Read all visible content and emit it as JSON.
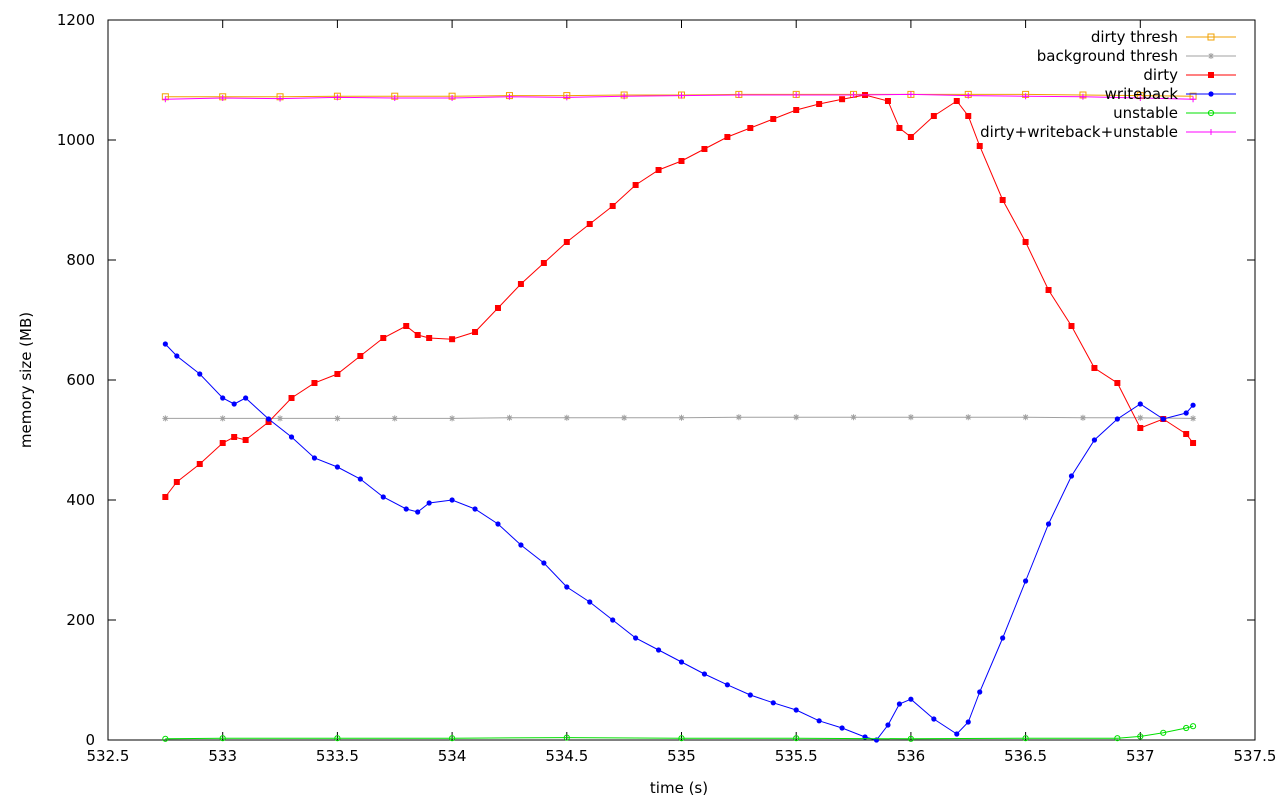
{
  "chart_data": {
    "type": "line",
    "title": "",
    "xlabel": "time (s)",
    "ylabel": "memory size (MB)",
    "xlim": [
      532.5,
      537.5
    ],
    "ylim": [
      0,
      1200
    ],
    "x_ticks": [
      532.5,
      533,
      533.5,
      534,
      534.5,
      535,
      535.5,
      536,
      536.5,
      537,
      537.5
    ],
    "x_tick_labels": [
      "532.5",
      "533",
      "533.5",
      "534",
      "534.5",
      "535",
      "535.5",
      "536",
      "536.5",
      "537",
      "537.5"
    ],
    "y_ticks": [
      0,
      200,
      400,
      600,
      800,
      1000,
      1200
    ],
    "y_tick_labels": [
      "0",
      "200",
      "400",
      "600",
      "800",
      "1000",
      "1200"
    ],
    "grid": false,
    "legend_position": "top-right",
    "series": [
      {
        "name": "dirty thresh",
        "color": "#f0a000",
        "marker": "square-open",
        "x": [
          532.75,
          533.0,
          533.25,
          533.5,
          533.75,
          534.0,
          534.25,
          534.5,
          534.75,
          535.0,
          535.25,
          535.5,
          535.75,
          536.0,
          536.25,
          536.5,
          536.75,
          537.0,
          537.23
        ],
        "y": [
          1072,
          1072,
          1072,
          1073,
          1073,
          1073,
          1074,
          1074,
          1075,
          1075,
          1076,
          1076,
          1076,
          1076,
          1076,
          1076,
          1075,
          1074,
          1073
        ]
      },
      {
        "name": "background thresh",
        "color": "#a0a0a0",
        "marker": "star",
        "x": [
          532.75,
          533.0,
          533.25,
          533.5,
          533.75,
          534.0,
          534.25,
          534.5,
          534.75,
          535.0,
          535.25,
          535.5,
          535.75,
          536.0,
          536.25,
          536.5,
          536.75,
          537.0,
          537.23
        ],
        "y": [
          536,
          536,
          536,
          536,
          536,
          536,
          537,
          537,
          537,
          537,
          538,
          538,
          538,
          538,
          538,
          538,
          537,
          537,
          536
        ]
      },
      {
        "name": "dirty",
        "color": "#ff0000",
        "marker": "square",
        "x": [
          532.75,
          532.8,
          532.9,
          533.0,
          533.05,
          533.1,
          533.2,
          533.3,
          533.4,
          533.5,
          533.6,
          533.7,
          533.8,
          533.85,
          533.9,
          534.0,
          534.1,
          534.2,
          534.3,
          534.4,
          534.5,
          534.6,
          534.7,
          534.8,
          534.9,
          535.0,
          535.1,
          535.2,
          535.3,
          535.4,
          535.5,
          535.6,
          535.7,
          535.8,
          535.9,
          535.95,
          536.0,
          536.1,
          536.2,
          536.25,
          536.3,
          536.4,
          536.5,
          536.6,
          536.7,
          536.8,
          536.9,
          537.0,
          537.1,
          537.2,
          537.23
        ],
        "y": [
          405,
          430,
          460,
          495,
          505,
          500,
          530,
          570,
          595,
          610,
          640,
          670,
          690,
          675,
          670,
          668,
          680,
          720,
          760,
          795,
          830,
          860,
          890,
          925,
          950,
          965,
          985,
          1005,
          1020,
          1035,
          1050,
          1060,
          1068,
          1075,
          1065,
          1020,
          1005,
          1040,
          1065,
          1040,
          990,
          900,
          830,
          750,
          690,
          620,
          595,
          520,
          535,
          510,
          495
        ]
      },
      {
        "name": "writeback",
        "color": "#0000ff",
        "marker": "circle",
        "x": [
          532.75,
          532.8,
          532.9,
          533.0,
          533.05,
          533.1,
          533.2,
          533.3,
          533.4,
          533.5,
          533.6,
          533.7,
          533.8,
          533.85,
          533.9,
          534.0,
          534.1,
          534.2,
          534.3,
          534.4,
          534.5,
          534.6,
          534.7,
          534.8,
          534.9,
          535.0,
          535.1,
          535.2,
          535.3,
          535.4,
          535.5,
          535.6,
          535.7,
          535.8,
          535.85,
          535.9,
          535.95,
          536.0,
          536.1,
          536.2,
          536.25,
          536.3,
          536.4,
          536.5,
          536.6,
          536.7,
          536.8,
          536.9,
          537.0,
          537.1,
          537.2,
          537.23
        ],
        "y": [
          660,
          640,
          610,
          570,
          560,
          570,
          535,
          505,
          470,
          455,
          435,
          405,
          385,
          380,
          395,
          400,
          385,
          360,
          325,
          295,
          255,
          230,
          200,
          170,
          150,
          130,
          110,
          92,
          75,
          62,
          50,
          32,
          20,
          5,
          0,
          25,
          60,
          68,
          35,
          10,
          30,
          80,
          170,
          265,
          360,
          440,
          500,
          535,
          560,
          535,
          545,
          558
        ]
      },
      {
        "name": "unstable",
        "color": "#00e000",
        "marker": "circle-open",
        "x": [
          532.75,
          533.0,
          533.5,
          534.0,
          534.5,
          535.0,
          535.5,
          536.0,
          536.5,
          536.9,
          537.0,
          537.1,
          537.2,
          537.23
        ],
        "y": [
          2,
          3,
          3,
          3,
          4,
          3,
          3,
          2,
          3,
          3,
          6,
          12,
          20,
          23
        ]
      },
      {
        "name": "dirty+writeback+unstable",
        "color": "#ff00ff",
        "marker": "plus",
        "x": [
          532.75,
          533.0,
          533.25,
          533.5,
          533.75,
          534.0,
          534.25,
          534.5,
          534.75,
          535.0,
          535.25,
          535.5,
          535.75,
          536.0,
          536.25,
          536.5,
          536.75,
          537.0,
          537.23
        ],
        "y": [
          1068,
          1070,
          1069,
          1071,
          1070,
          1070,
          1072,
          1071,
          1073,
          1074,
          1075,
          1075,
          1075,
          1076,
          1074,
          1073,
          1072,
          1070,
          1068
        ]
      }
    ]
  }
}
